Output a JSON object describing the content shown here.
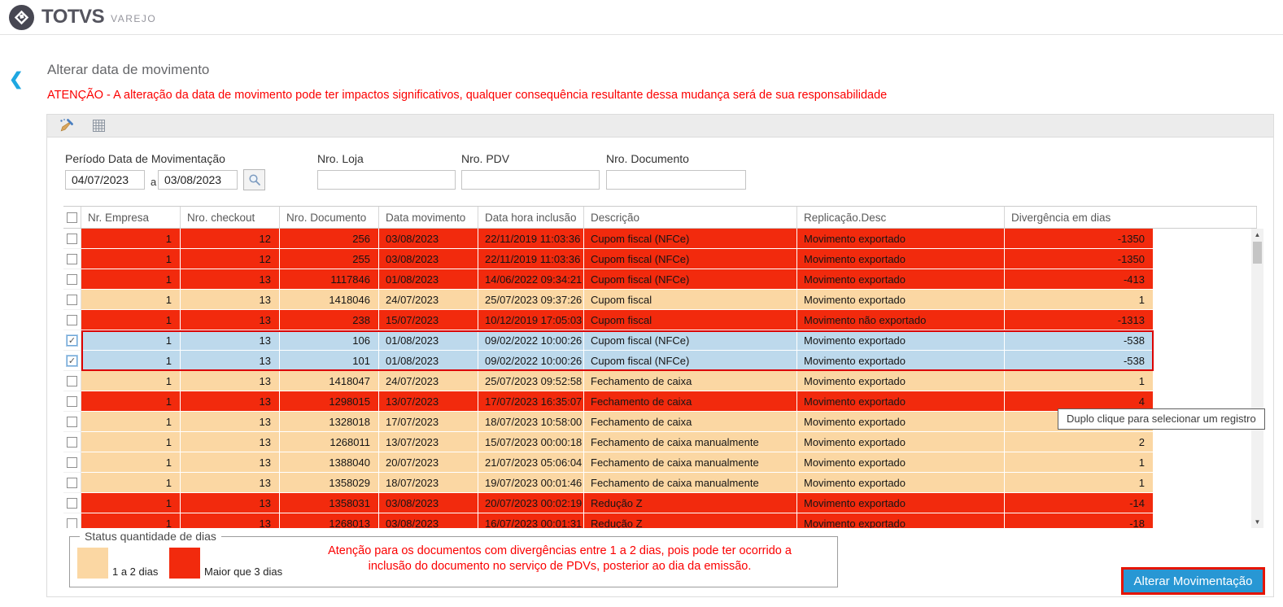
{
  "brand": {
    "logo_text": "TOTVS",
    "logo_sub": "VAREJO"
  },
  "header": {
    "back_glyph": "❮",
    "title": "Alterar data de movimento",
    "warning": "ATENÇÃO - A alteração da data de movimento pode ter impactos significativos, qualquer consequência resultante dessa mudança será de sua responsabilidade"
  },
  "filters": {
    "period_label": "Período Data de Movimentação",
    "date_from": "04/07/2023",
    "date_separator": "a",
    "date_to": "03/08/2023",
    "loja_label": "Nro. Loja",
    "pdv_label": "Nro. PDV",
    "documento_label": "Nro. Documento"
  },
  "table": {
    "columns": [
      "Nr. Empresa",
      "Nro. checkout",
      "Nro. Documento",
      "Data movimento",
      "Data hora inclusão",
      "Descrição",
      "Replicação.Desc",
      "Divergência em dias"
    ],
    "rows": [
      {
        "empresa": "1",
        "checkout": "12",
        "documento": "256",
        "data_movimento": "03/08/2023",
        "data_hora": "22/11/2019 11:03:36",
        "descricao": "Cupom fiscal (NFCe)",
        "replicacao": "Movimento exportado",
        "divergencia": "-1350",
        "status": "red",
        "checked": false
      },
      {
        "empresa": "1",
        "checkout": "12",
        "documento": "255",
        "data_movimento": "03/08/2023",
        "data_hora": "22/11/2019 11:03:36",
        "descricao": "Cupom fiscal (NFCe)",
        "replicacao": "Movimento exportado",
        "divergencia": "-1350",
        "status": "red",
        "checked": false
      },
      {
        "empresa": "1",
        "checkout": "13",
        "documento": "1117846",
        "data_movimento": "01/08/2023",
        "data_hora": "14/06/2022 09:34:21",
        "descricao": "Cupom fiscal (NFCe)",
        "replicacao": "Movimento exportado",
        "divergencia": "-413",
        "status": "red",
        "checked": false
      },
      {
        "empresa": "1",
        "checkout": "13",
        "documento": "1418046",
        "data_movimento": "24/07/2023",
        "data_hora": "25/07/2023 09:37:26",
        "descricao": "Cupom fiscal",
        "replicacao": "Movimento exportado",
        "divergencia": "1",
        "status": "orange",
        "checked": false
      },
      {
        "empresa": "1",
        "checkout": "13",
        "documento": "238",
        "data_movimento": "15/07/2023",
        "data_hora": "10/12/2019 17:05:03",
        "descricao": "Cupom fiscal",
        "replicacao": "Movimento não exportado",
        "divergencia": "-1313",
        "status": "red",
        "checked": false
      },
      {
        "empresa": "1",
        "checkout": "13",
        "documento": "106",
        "data_movimento": "01/08/2023",
        "data_hora": "09/02/2022 10:00:26",
        "descricao": "Cupom fiscal (NFCe)",
        "replicacao": "Movimento exportado",
        "divergencia": "-538",
        "status": "selected",
        "checked": true
      },
      {
        "empresa": "1",
        "checkout": "13",
        "documento": "101",
        "data_movimento": "01/08/2023",
        "data_hora": "09/02/2022 10:00:26",
        "descricao": "Cupom fiscal (NFCe)",
        "replicacao": "Movimento exportado",
        "divergencia": "-538",
        "status": "selected",
        "checked": true
      },
      {
        "empresa": "1",
        "checkout": "13",
        "documento": "1418047",
        "data_movimento": "24/07/2023",
        "data_hora": "25/07/2023 09:52:58",
        "descricao": "Fechamento de caixa",
        "replicacao": "Movimento exportado",
        "divergencia": "1",
        "status": "orange",
        "checked": false
      },
      {
        "empresa": "1",
        "checkout": "13",
        "documento": "1298015",
        "data_movimento": "13/07/2023",
        "data_hora": "17/07/2023 16:35:07",
        "descricao": "Fechamento de caixa",
        "replicacao": "Movimento exportado",
        "divergencia": "4",
        "status": "red",
        "checked": false
      },
      {
        "empresa": "1",
        "checkout": "13",
        "documento": "1328018",
        "data_movimento": "17/07/2023",
        "data_hora": "18/07/2023 10:58:00",
        "descricao": "Fechamento de caixa",
        "replicacao": "Movimento exportado",
        "divergencia": "",
        "status": "orange",
        "checked": false
      },
      {
        "empresa": "1",
        "checkout": "13",
        "documento": "1268011",
        "data_movimento": "13/07/2023",
        "data_hora": "15/07/2023 00:00:18",
        "descricao": "Fechamento de caixa manualmente",
        "replicacao": "Movimento exportado",
        "divergencia": "2",
        "status": "orange",
        "checked": false
      },
      {
        "empresa": "1",
        "checkout": "13",
        "documento": "1388040",
        "data_movimento": "20/07/2023",
        "data_hora": "21/07/2023 05:06:04",
        "descricao": "Fechamento de caixa manualmente",
        "replicacao": "Movimento exportado",
        "divergencia": "1",
        "status": "orange",
        "checked": false
      },
      {
        "empresa": "1",
        "checkout": "13",
        "documento": "1358029",
        "data_movimento": "18/07/2023",
        "data_hora": "19/07/2023 00:01:46",
        "descricao": "Fechamento de caixa manualmente",
        "replicacao": "Movimento exportado",
        "divergencia": "1",
        "status": "orange",
        "checked": false
      },
      {
        "empresa": "1",
        "checkout": "13",
        "documento": "1358031",
        "data_movimento": "03/08/2023",
        "data_hora": "20/07/2023 00:02:19",
        "descricao": "Redução Z",
        "replicacao": "Movimento exportado",
        "divergencia": "-14",
        "status": "red",
        "checked": false
      },
      {
        "empresa": "1",
        "checkout": "13",
        "documento": "1268013",
        "data_movimento": "03/08/2023",
        "data_hora": "16/07/2023 00:01:31",
        "descricao": "Redução Z",
        "replicacao": "Movimento exportado",
        "divergencia": "-18",
        "status": "red",
        "checked": false
      }
    ]
  },
  "tooltip": {
    "text": "Duplo clique para selecionar um registro"
  },
  "legend": {
    "title": "Status quantidade de dias",
    "items": [
      {
        "label": "1 a 2 dias",
        "color": "#fbd7a3"
      },
      {
        "label": "Maior que 3 dias",
        "color": "#f22a0d"
      }
    ]
  },
  "notice": {
    "line1": "Atenção para os documentos com divergências entre 1 a 2 dias, pois pode ter ocorrido a",
    "line2": "inclusão do documento no serviço de PDVs, posterior ao dia da emissão."
  },
  "actions": {
    "alterar_button": "Alterar Movimentação"
  },
  "colors": {
    "red_row": "#f22a0d",
    "orange_row": "#fbd7a3",
    "selected_row": "#bdd9ec",
    "selection_border": "#dc0000",
    "button_blue": "#2897d4",
    "button_outline_red": "#e51400",
    "accent_blue": "#1ea7e1",
    "warning_red": "#fb0000"
  }
}
